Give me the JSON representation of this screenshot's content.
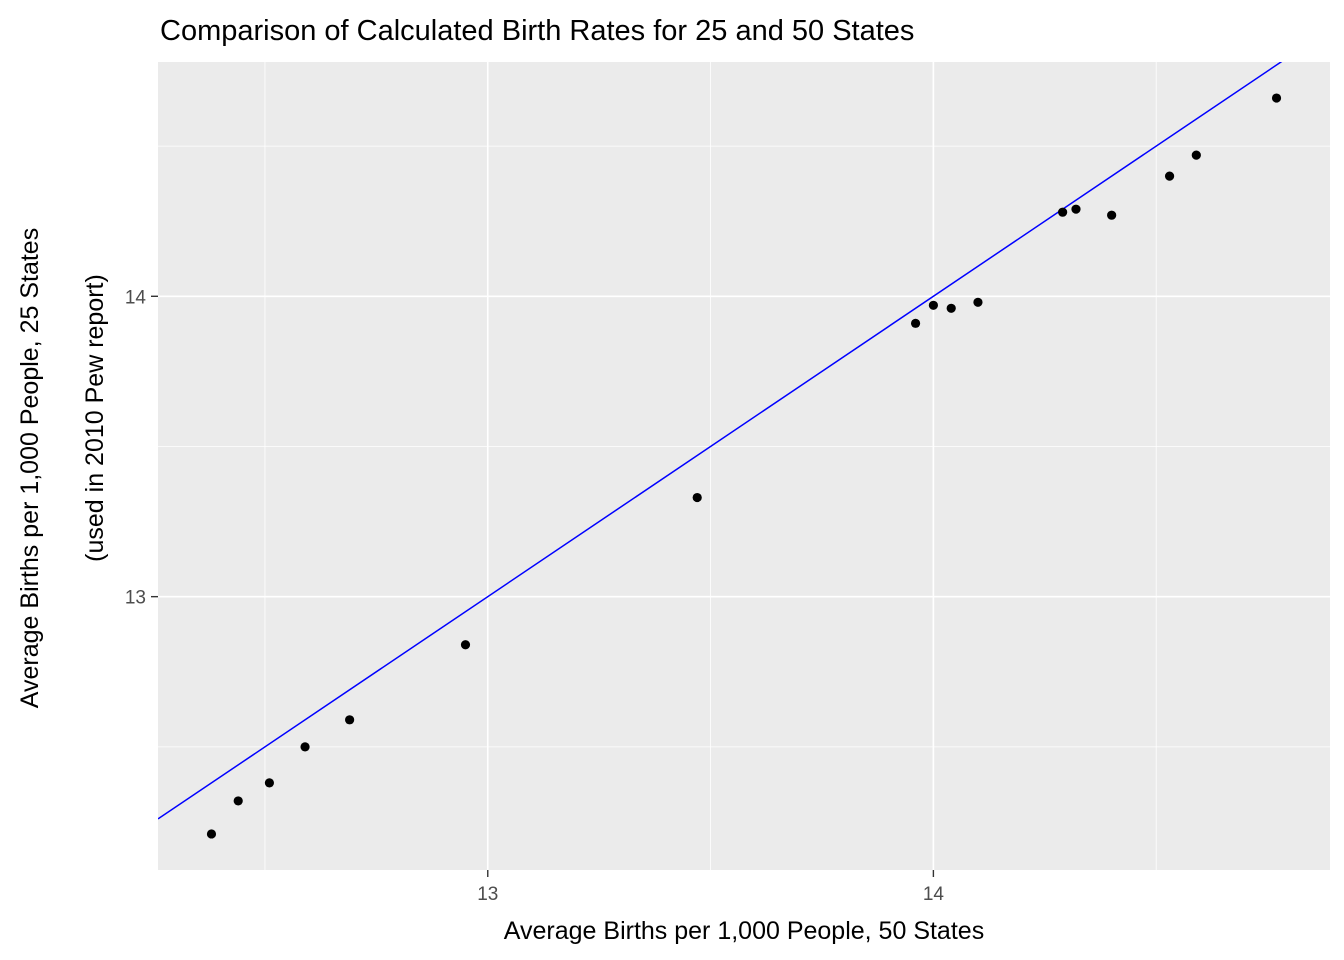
{
  "chart_data": {
    "type": "scatter",
    "title": "Comparison of Calculated Birth Rates for 25 and 50 States",
    "xlabel": "Average Births per 1,000 People, 50 States",
    "ylabel": [
      "Average Births per 1,000 People, 25 States",
      "(used in 2010 Pew report)"
    ],
    "xlim": [
      12.26,
      14.89
    ],
    "ylim": [
      12.09,
      14.78
    ],
    "x_ticks": [
      13,
      14
    ],
    "y_ticks": [
      13,
      14
    ],
    "x_minor": [
      12.5,
      13.5,
      14.5
    ],
    "y_minor": [
      12.5,
      13.5,
      14.5
    ],
    "grid": true,
    "points": [
      {
        "x": 12.38,
        "y": 12.21
      },
      {
        "x": 12.44,
        "y": 12.32
      },
      {
        "x": 12.51,
        "y": 12.38
      },
      {
        "x": 12.59,
        "y": 12.5
      },
      {
        "x": 12.69,
        "y": 12.59
      },
      {
        "x": 12.95,
        "y": 12.84
      },
      {
        "x": 13.47,
        "y": 13.33
      },
      {
        "x": 13.96,
        "y": 13.91
      },
      {
        "x": 14.0,
        "y": 13.97
      },
      {
        "x": 14.04,
        "y": 13.96
      },
      {
        "x": 14.1,
        "y": 13.98
      },
      {
        "x": 14.29,
        "y": 14.28
      },
      {
        "x": 14.32,
        "y": 14.29
      },
      {
        "x": 14.4,
        "y": 14.27
      },
      {
        "x": 14.53,
        "y": 14.4
      },
      {
        "x": 14.59,
        "y": 14.47
      },
      {
        "x": 14.77,
        "y": 14.66
      }
    ],
    "reference_line": {
      "slope": 1,
      "intercept": 0,
      "color": "#0000ff"
    },
    "colors": {
      "panel": "#ebebeb",
      "point": "#000000",
      "line": "#0000ff"
    }
  }
}
